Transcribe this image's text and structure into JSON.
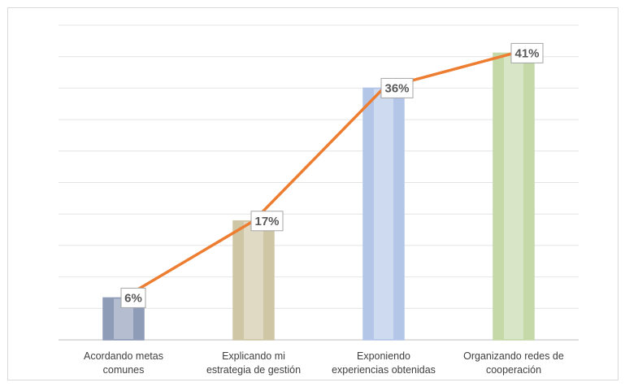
{
  "chart_data": {
    "type": "bar_line",
    "categories": [
      "Acordando metas\ncomunes",
      "Explicando mi\nestrategia de gestión",
      "Exponiendo\nexperiencias obtenidas",
      "Organizando redes de\ncooperación"
    ],
    "values": [
      6,
      17,
      36,
      41
    ],
    "value_labels": [
      "6%",
      "17%",
      "36%",
      "41%"
    ],
    "colors": [
      "#8e9cb8",
      "#cfc6a6",
      "#b3c6e8",
      "#c4d8a8"
    ],
    "line_color": "#ed7d31",
    "ylim": [
      0,
      45
    ],
    "yticks": [
      0,
      4.5,
      9,
      13.5,
      18,
      22.5,
      27,
      31.5,
      36,
      40.5,
      45
    ],
    "grid": true
  }
}
